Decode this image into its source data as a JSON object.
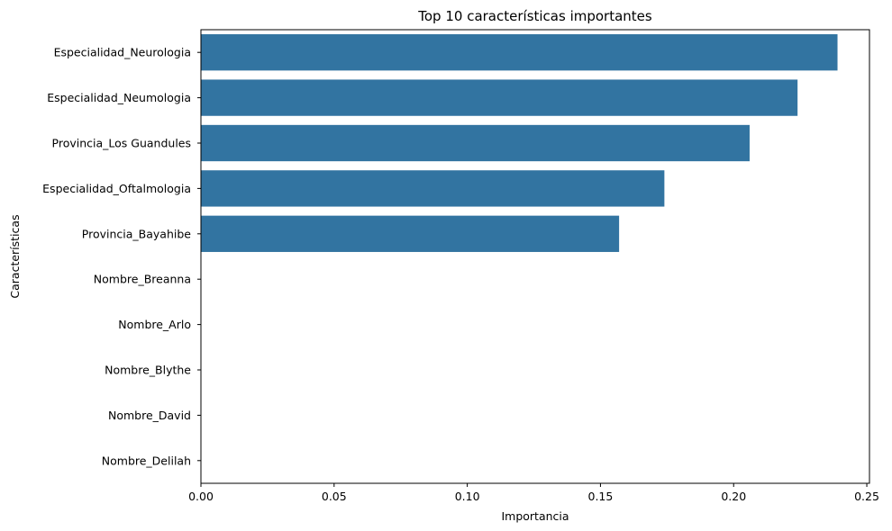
{
  "chart_data": {
    "type": "bar",
    "orientation": "horizontal",
    "title": "Top 10 características importantes",
    "xlabel": "Importancia",
    "ylabel": "Características",
    "categories": [
      "Especialidad_Neurologia",
      "Especialidad_Neumologia",
      "Provincia_Los Guandules",
      "Especialidad_Oftalmologia",
      "Provincia_Bayahibe",
      "Nombre_Breanna",
      "Nombre_Arlo",
      "Nombre_Blythe",
      "Nombre_David",
      "Nombre_Delilah"
    ],
    "values": [
      0.239,
      0.224,
      0.206,
      0.174,
      0.157,
      0.0,
      0.0,
      0.0,
      0.0,
      0.0
    ],
    "xlim": [
      0,
      0.251
    ],
    "xticks": [
      "0.00",
      "0.05",
      "0.10",
      "0.15",
      "0.20",
      "0.25"
    ],
    "bar_color": "#3274a1",
    "grid": false
  }
}
